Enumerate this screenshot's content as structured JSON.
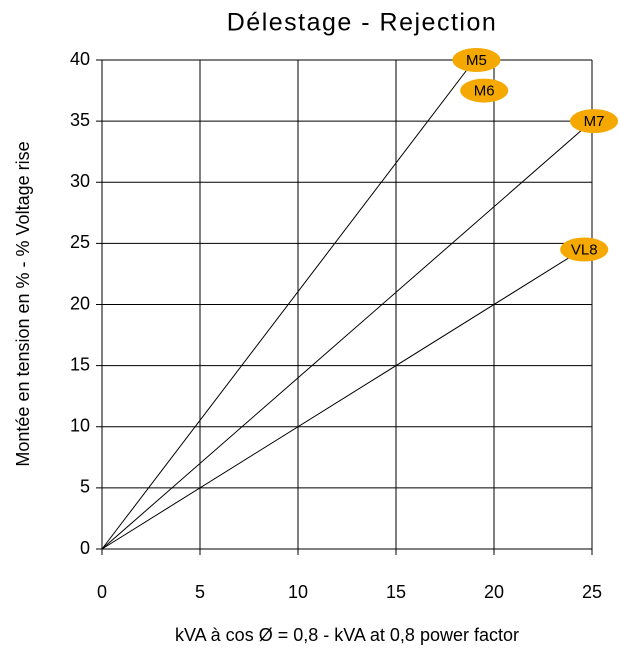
{
  "chart_data": {
    "type": "line",
    "title": "Délestage - Rejection",
    "xlabel": "kVA à cos Ø = 0,8 - kVA at 0,8 power factor",
    "ylabel": "Montée en tension en % - % Voltage rise",
    "xlim": [
      0,
      25
    ],
    "ylim": [
      0,
      40
    ],
    "xticks": [
      0,
      5,
      10,
      15,
      20,
      25
    ],
    "yticks": [
      0,
      5,
      10,
      15,
      20,
      25,
      30,
      35,
      40
    ],
    "grid": true,
    "series": [
      {
        "name": "M5",
        "color": "#000000",
        "x": [
          0,
          19
        ],
        "values": [
          0,
          40
        ]
      },
      {
        "name": "M7",
        "color": "#000000",
        "x": [
          0,
          25
        ],
        "values": [
          0,
          35
        ]
      },
      {
        "name": "VL8",
        "color": "#000000",
        "x": [
          0,
          24.5
        ],
        "values": [
          0,
          24.5
        ]
      }
    ],
    "annotations": [
      {
        "text": "M6",
        "x": 19.5,
        "y": 37.5
      }
    ],
    "label_color": "#f5a800"
  }
}
